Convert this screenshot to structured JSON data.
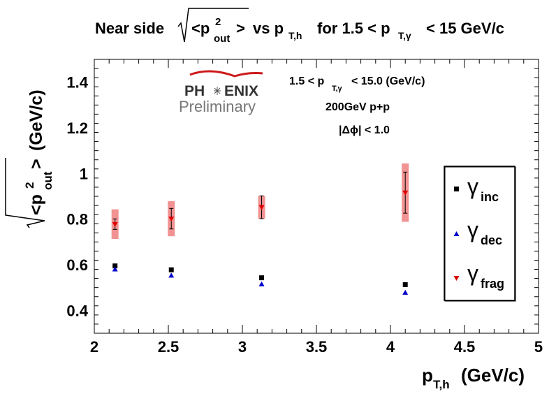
{
  "chart_data": {
    "type": "scatter",
    "title": {
      "prefix": "Near side",
      "root_content": "<p",
      "sup": "2",
      "sub": "out",
      "root_close": ">",
      "middle": "vs p",
      "middle_sub": "T,h",
      "suffix_pre": "for 1.5 < p",
      "suffix_sub": "T,γ",
      "suffix_post": "< 15 GeV/c"
    },
    "xlabel": {
      "main": "p",
      "sub": "T,h",
      "unit": "(GeV/c)"
    },
    "ylabel": {
      "open": "<p",
      "sup": "2",
      "sub": "out",
      "close": ">",
      "unit": "(GeV/c)"
    },
    "xlim": [
      2,
      5
    ],
    "ylim": [
      0.3,
      1.5
    ],
    "xticks": [
      "2",
      "2.5",
      "3",
      "3.5",
      "4",
      "4.5",
      "5"
    ],
    "xtick_values": [
      2,
      2.5,
      3,
      3.5,
      4,
      4.5,
      5
    ],
    "yticks": [
      "0.4",
      "0.6",
      "0.8",
      "1",
      "1.2",
      "1.4"
    ],
    "ytick_values": [
      0.4,
      0.6,
      0.8,
      1.0,
      1.2,
      1.4
    ],
    "grid": false,
    "legend_position": "right",
    "series": [
      {
        "name": "inc",
        "marker": "square",
        "color": "#000000",
        "x": [
          2.14,
          2.52,
          3.13,
          4.1
        ],
        "y": [
          0.595,
          0.578,
          0.543,
          0.513
        ]
      },
      {
        "name": "dec",
        "marker": "triangle-up",
        "color": "#0000cc",
        "x": [
          2.14,
          2.52,
          3.13,
          4.1
        ],
        "y": [
          0.58,
          0.553,
          0.515,
          0.478
        ]
      },
      {
        "name": "frag",
        "marker": "triangle-down",
        "color": "#dd0000",
        "x": [
          2.14,
          2.52,
          3.13,
          4.1
        ],
        "y": [
          0.778,
          0.802,
          0.852,
          0.916
        ],
        "stat_err": [
          0.023,
          0.045,
          0.05,
          0.09
        ],
        "sys_err": [
          0.065,
          0.077,
          0.05,
          0.128
        ]
      }
    ],
    "annotations": [
      {
        "main": "1.5 < p",
        "sub": "T,γ",
        "post": "< 15.0 (GeV/c)"
      },
      {
        "text": "200GeV p+p"
      },
      {
        "text": "|Δϕ| < 1.0"
      }
    ],
    "logo": {
      "top": "PH",
      "mid": "ENIX",
      "bottom": "Preliminary"
    },
    "legend_symbol": "γ"
  }
}
